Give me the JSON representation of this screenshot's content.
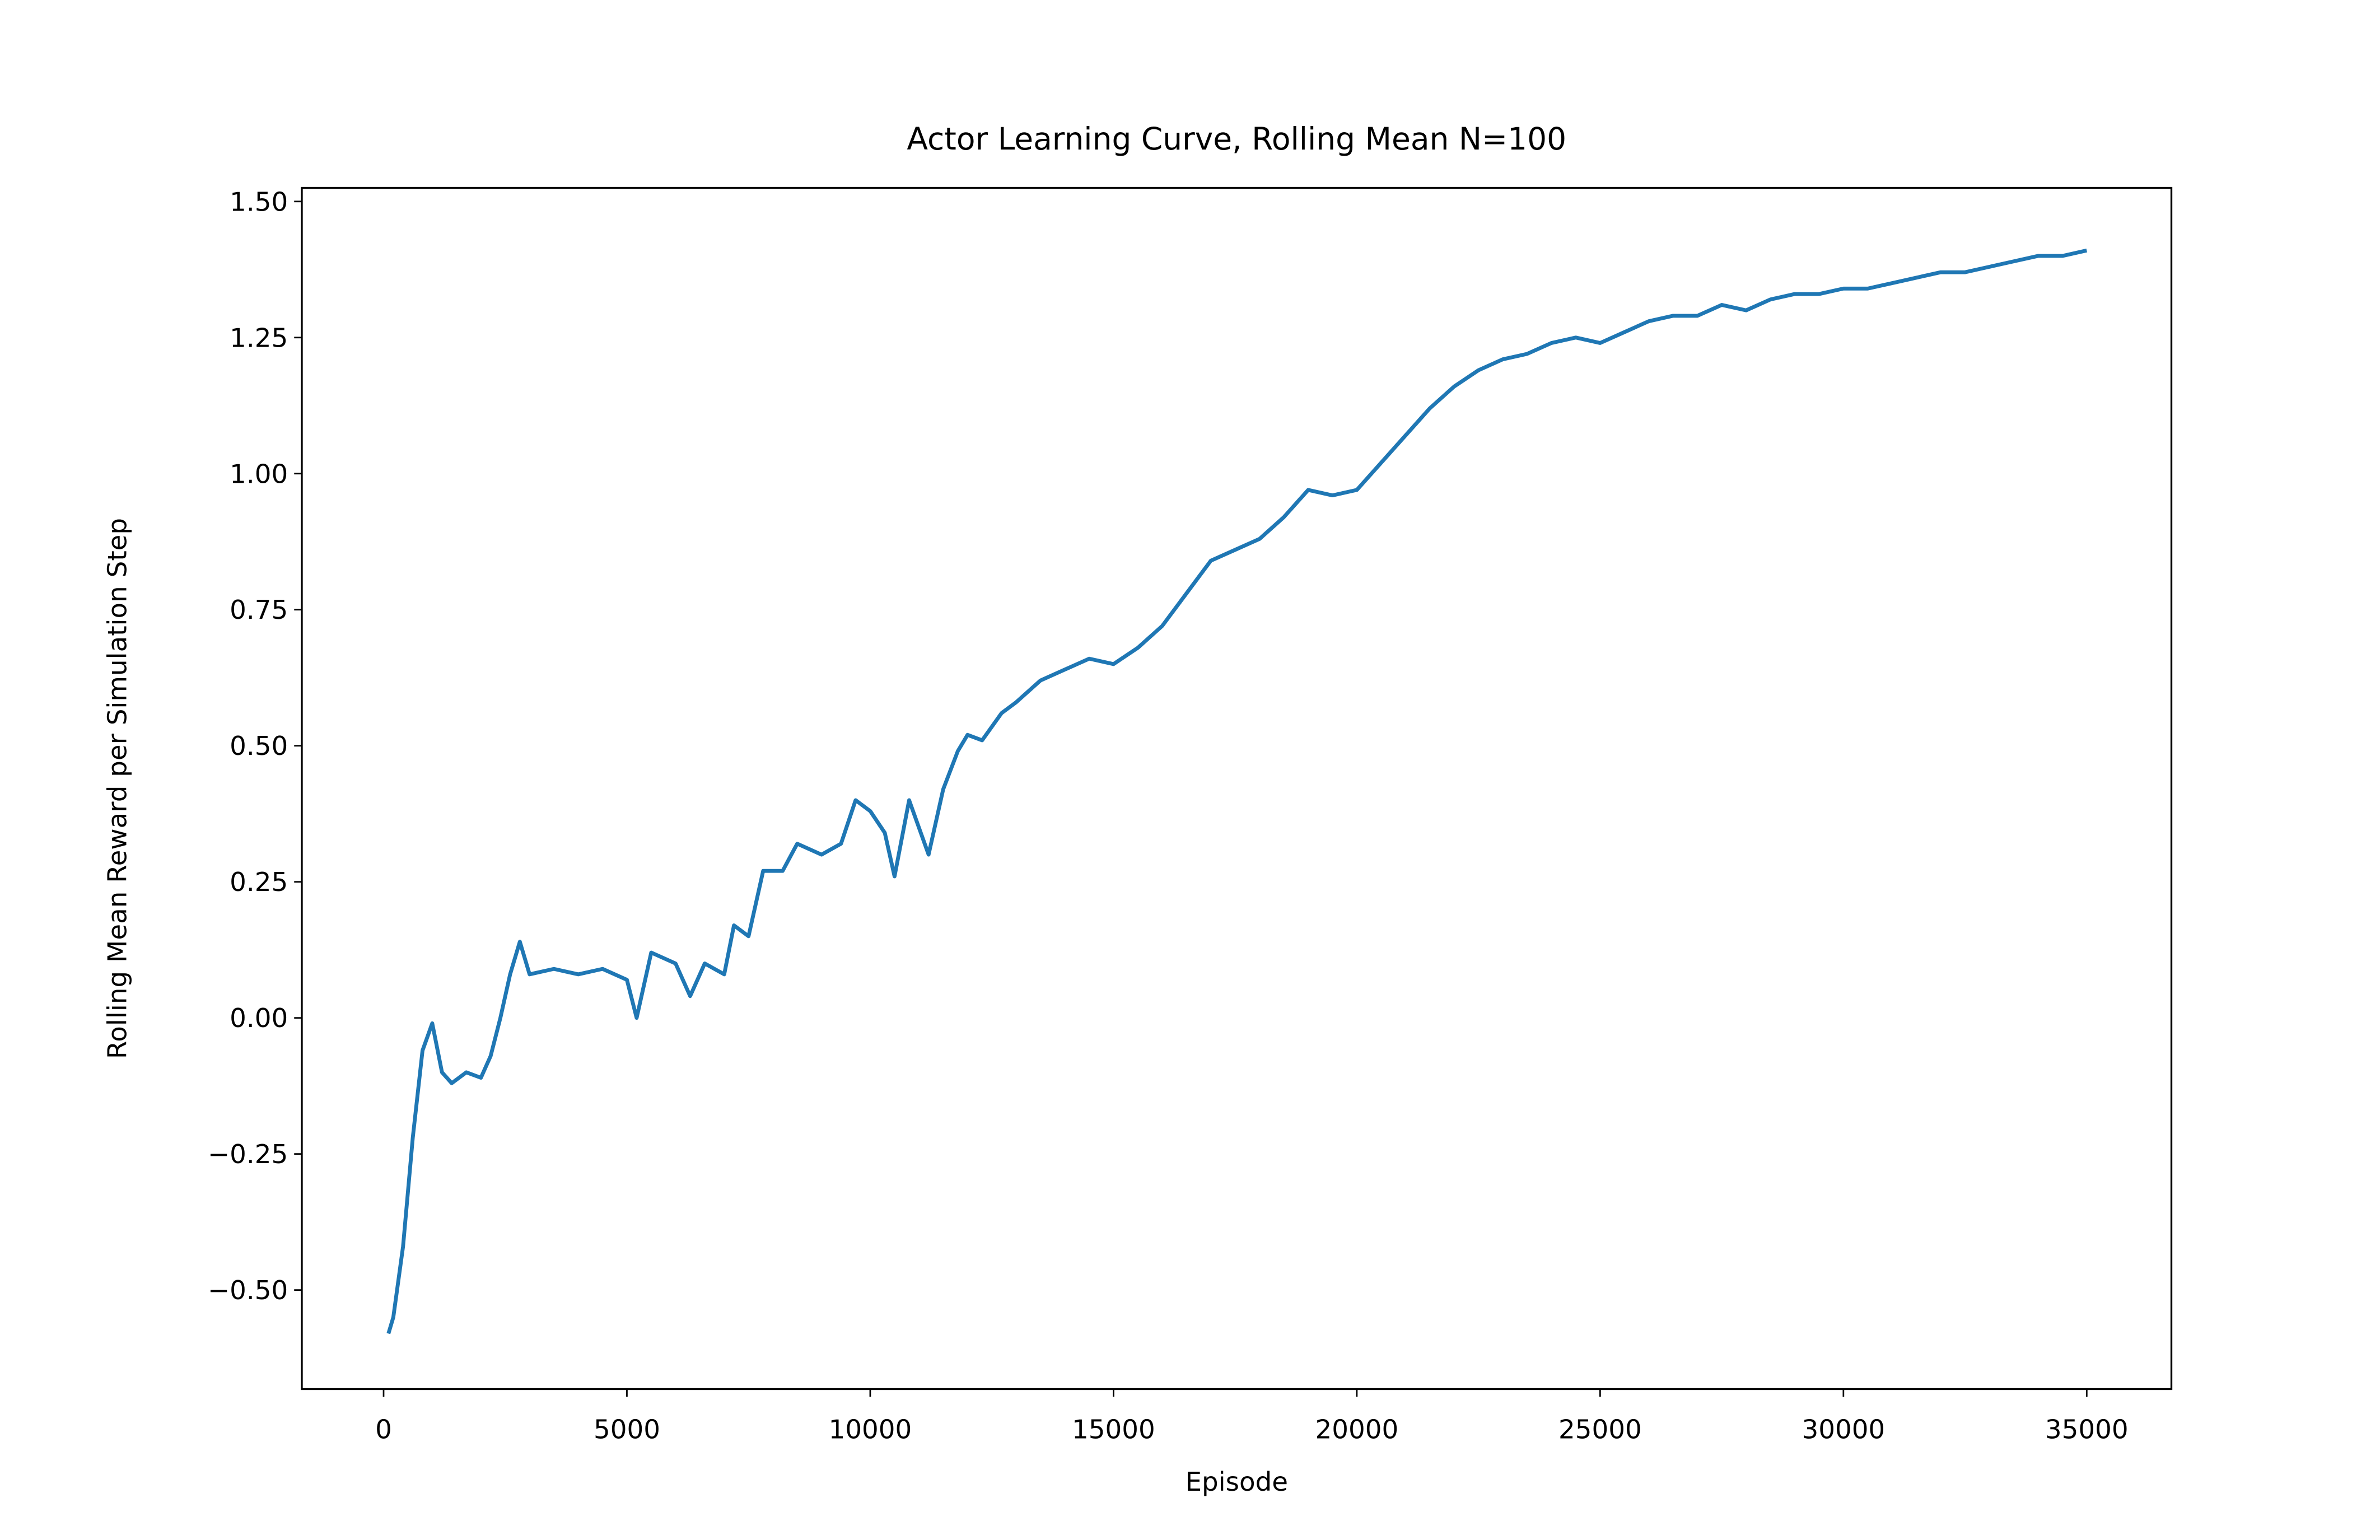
{
  "chart_data": {
    "type": "line",
    "title": "Actor Learning Curve, Rolling Mean N=100",
    "x_label": "Episode",
    "y_label": "Rolling Mean Reward per Simulation Step",
    "x": [
      100,
      200,
      400,
      600,
      800,
      1000,
      1200,
      1400,
      1700,
      2000,
      2200,
      2400,
      2600,
      2800,
      3000,
      3500,
      4000,
      4500,
      5000,
      5200,
      5500,
      6000,
      6300,
      6600,
      7000,
      7200,
      7500,
      7800,
      8200,
      8500,
      9000,
      9400,
      9700,
      10000,
      10300,
      10500,
      10800,
      11000,
      11200,
      11500,
      11800,
      12000,
      12300,
      12700,
      13000,
      13500,
      14000,
      14500,
      15000,
      15500,
      16000,
      16500,
      17000,
      17500,
      18000,
      18500,
      19000,
      19500,
      20000,
      20500,
      21000,
      21500,
      22000,
      22500,
      23000,
      23500,
      24000,
      24500,
      25000,
      25500,
      26000,
      26500,
      27000,
      27500,
      28000,
      28500,
      29000,
      29500,
      30000,
      30500,
      31000,
      31500,
      32000,
      32500,
      33000,
      33500,
      34000,
      34500,
      35000
    ],
    "series": [
      {
        "name": "Rolling Mean Reward",
        "color": "#1f77b4",
        "values": [
          -0.58,
          -0.55,
          -0.42,
          -0.22,
          -0.06,
          -0.01,
          -0.1,
          -0.12,
          -0.1,
          -0.11,
          -0.07,
          0.0,
          0.08,
          0.14,
          0.08,
          0.09,
          0.08,
          0.09,
          0.07,
          0.0,
          0.12,
          0.1,
          0.04,
          0.1,
          0.08,
          0.17,
          0.15,
          0.27,
          0.27,
          0.32,
          0.3,
          0.32,
          0.4,
          0.38,
          0.34,
          0.26,
          0.4,
          0.35,
          0.3,
          0.42,
          0.49,
          0.52,
          0.51,
          0.56,
          0.58,
          0.62,
          0.64,
          0.66,
          0.65,
          0.68,
          0.72,
          0.78,
          0.84,
          0.86,
          0.88,
          0.92,
          0.97,
          0.96,
          0.97,
          1.02,
          1.07,
          1.12,
          1.16,
          1.19,
          1.21,
          1.22,
          1.24,
          1.25,
          1.24,
          1.26,
          1.28,
          1.29,
          1.29,
          1.31,
          1.3,
          1.32,
          1.33,
          1.33,
          1.34,
          1.34,
          1.35,
          1.36,
          1.37,
          1.37,
          1.38,
          1.39,
          1.4,
          1.4,
          1.41
        ]
      }
    ],
    "xlim": [
      -1680,
      36740
    ],
    "ylim": [
      -0.682,
      1.525
    ],
    "xticks": [
      0,
      5000,
      10000,
      15000,
      20000,
      25000,
      30000,
      35000
    ],
    "yticks": [
      {
        "value": -0.5,
        "label": "−0.50"
      },
      {
        "value": -0.25,
        "label": "−0.25"
      },
      {
        "value": 0,
        "label": "0.00"
      },
      0.25,
      {
        "value": 0.5,
        "label": "0.50"
      },
      0.75,
      {
        "value": 1,
        "label": "1.00"
      },
      {
        "value": 1.25,
        "label": "1.25"
      },
      {
        "value": 1.5,
        "label": "1.50"
      }
    ],
    "grid": false
  }
}
